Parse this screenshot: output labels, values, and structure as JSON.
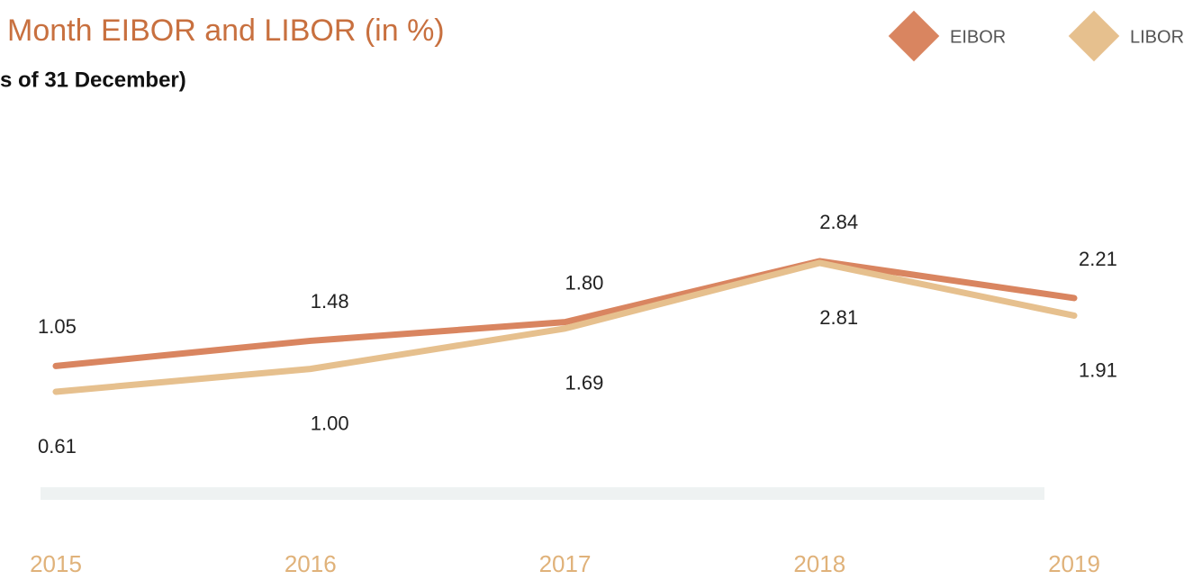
{
  "chart_data": {
    "type": "line",
    "title": "Month EIBOR and LIBOR (in %)",
    "subtitle": "s of 31 December)",
    "categories": [
      "2015",
      "2016",
      "2017",
      "2018",
      "2019"
    ],
    "series": [
      {
        "name": "EIBOR",
        "color": "#d98560",
        "values": [
          1.05,
          1.48,
          1.8,
          2.84,
          2.21
        ],
        "value_labels": [
          "1.05",
          "1.48",
          "1.80",
          "2.84",
          "2.21"
        ]
      },
      {
        "name": "LIBOR",
        "color": "#e6c08e",
        "values": [
          0.61,
          1.0,
          1.69,
          2.81,
          1.91
        ],
        "value_labels": [
          "0.61",
          "1.00",
          "1.69",
          "2.81",
          "1.91"
        ]
      }
    ]
  }
}
